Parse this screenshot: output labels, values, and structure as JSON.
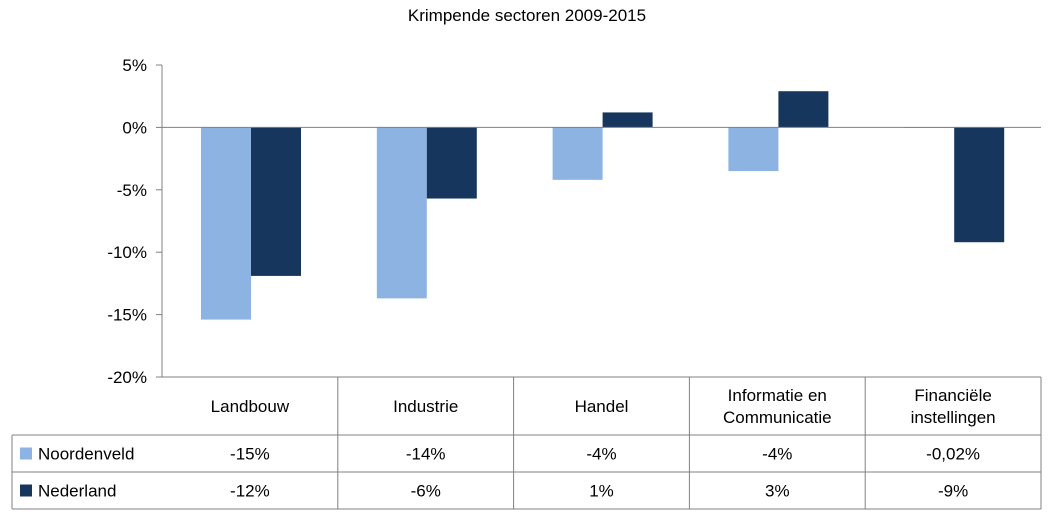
{
  "chart_data": {
    "type": "bar",
    "title": "Krimpende sectoren 2009-2015",
    "categories": [
      "Landbouw",
      "Industrie",
      "Handel",
      "Informatie en Communicatie",
      "Financiële instellingen"
    ],
    "category_lines": [
      [
        "Landbouw"
      ],
      [
        "Industrie"
      ],
      [
        "Handel"
      ],
      [
        "Informatie en",
        "Communicatie"
      ],
      [
        "Financiële",
        "instellingen"
      ]
    ],
    "series": [
      {
        "name": "Noordenveld",
        "color": "#8db3e2",
        "values": [
          -15.4,
          -13.7,
          -4.2,
          -3.5,
          -0.02
        ],
        "labels": [
          "-15%",
          "-14%",
          "-4%",
          "-4%",
          "-0,02%"
        ]
      },
      {
        "name": "Nederland",
        "color": "#17365d",
        "values": [
          -11.9,
          -5.7,
          1.2,
          2.9,
          -9.2
        ],
        "labels": [
          "-12%",
          "-6%",
          "1%",
          "3%",
          "-9%"
        ]
      }
    ],
    "ylim": [
      -20,
      5
    ],
    "yticks": [
      5,
      0,
      -5,
      -10,
      -15,
      -20
    ],
    "ytick_labels": [
      "5%",
      "0%",
      "-5%",
      "-10%",
      "-15%",
      "-20%"
    ],
    "grid": false,
    "legend": "data-table"
  }
}
